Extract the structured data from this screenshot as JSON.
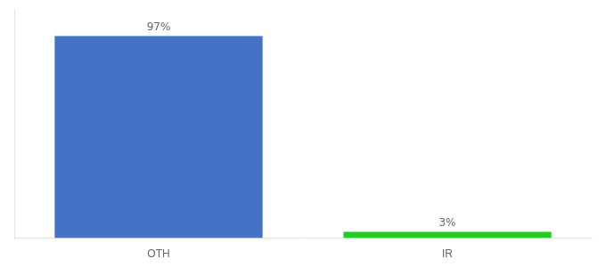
{
  "chart_data": {
    "type": "bar",
    "categories": [
      "OTH",
      "IR"
    ],
    "values": [
      97,
      3
    ],
    "colors": [
      "#4472c4",
      "#22cc22"
    ],
    "value_labels": [
      "97%",
      "3%"
    ],
    "data_labels": true,
    "ylim": [
      0,
      110
    ],
    "tick_labels": "x",
    "grid": false
  }
}
